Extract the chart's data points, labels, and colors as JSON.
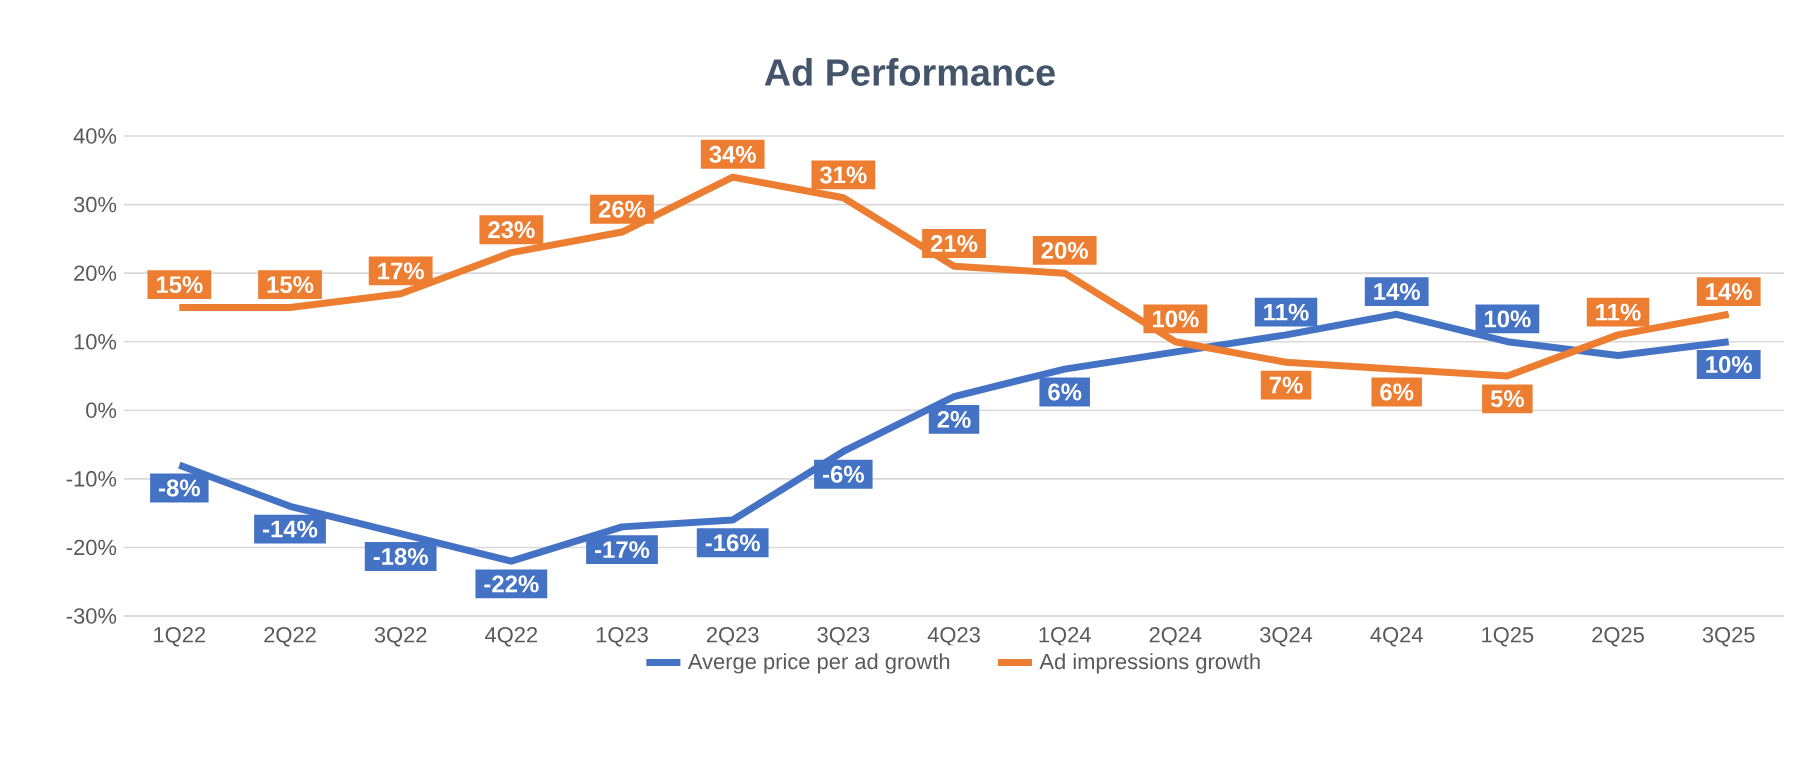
{
  "chart_data": {
    "type": "line",
    "title": "Ad Performance",
    "categories": [
      "1Q22",
      "2Q22",
      "3Q22",
      "4Q22",
      "1Q23",
      "2Q23",
      "3Q23",
      "4Q23",
      "1Q24",
      "2Q24",
      "3Q24",
      "4Q24",
      "1Q25",
      "2Q25",
      "3Q25"
    ],
    "series": [
      {
        "name": "Averge price per ad growth",
        "color": "#4472c4",
        "values": [
          -8,
          -14,
          -18,
          -22,
          -17,
          -16,
          -6,
          2,
          6,
          null,
          11,
          14,
          10,
          8,
          10
        ],
        "value_labels": [
          "-8%",
          "-14%",
          "-18%",
          "-22%",
          "-17%",
          "-16%",
          "-6%",
          "2%",
          "6%",
          null,
          "11%",
          "14%",
          "10%",
          null,
          "10%"
        ]
      },
      {
        "name": "Ad impressions growth",
        "color": "#ed7d31",
        "values": [
          15,
          15,
          17,
          23,
          26,
          34,
          31,
          21,
          20,
          10,
          7,
          6,
          5,
          11,
          14
        ],
        "value_labels": [
          "15%",
          "15%",
          "17%",
          "23%",
          "26%",
          "34%",
          "31%",
          "21%",
          "20%",
          "10%",
          "7%",
          "6%",
          "5%",
          "11%",
          "14%"
        ]
      }
    ],
    "ylim": [
      -30,
      40
    ],
    "yticks": [
      {
        "value": -30,
        "label": "-30%"
      },
      {
        "value": -20,
        "label": "-20%"
      },
      {
        "value": -10,
        "label": "-10%"
      },
      {
        "value": 0,
        "label": "0%"
      },
      {
        "value": 10,
        "label": "10%"
      },
      {
        "value": 20,
        "label": "20%"
      },
      {
        "value": 30,
        "label": "30%"
      },
      {
        "value": 40,
        "label": "40%"
      }
    ],
    "grid": "y",
    "legend": "bottom",
    "line_style": "solid"
  }
}
